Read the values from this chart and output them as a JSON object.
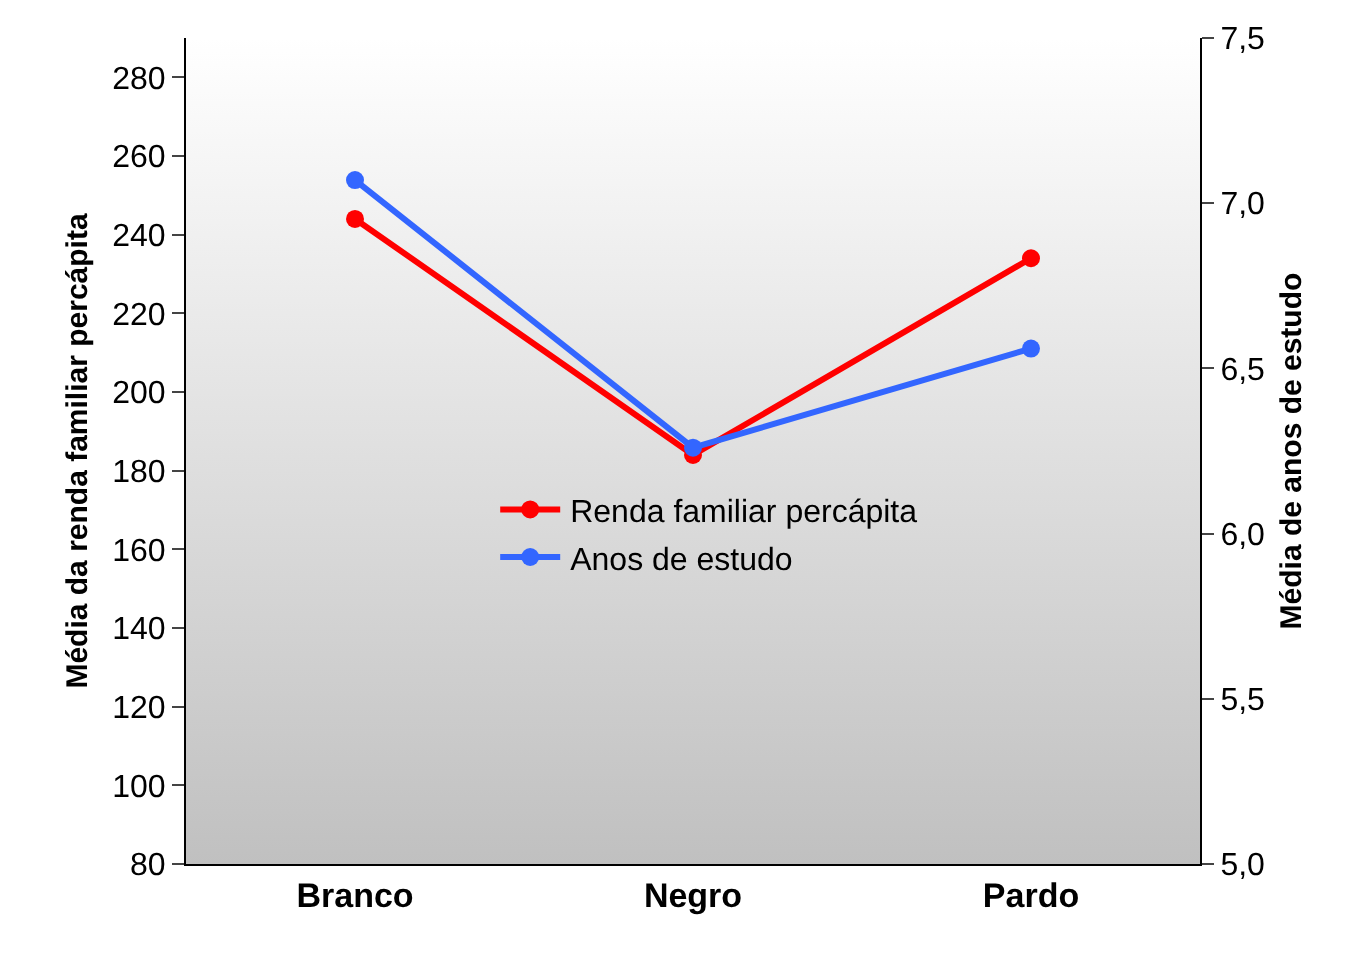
{
  "chart_data": {
    "type": "line",
    "ylabel": "Média da renda familiar percápita",
    "y2label": "Média de anos de estudo",
    "categories": [
      "Branco",
      "Negro",
      "Pardo"
    ],
    "series": [
      {
        "name": "Renda familiar percápita",
        "color": "#ff0000",
        "values": [
          244,
          184,
          234
        ]
      },
      {
        "name": "Anos de estudo",
        "color": "#3366ff",
        "values": [
          7.07,
          6.26,
          6.56
        ],
        "axis": "y2"
      }
    ],
    "ylim": [
      80,
      290
    ],
    "yticks": [
      80,
      100,
      120,
      140,
      160,
      180,
      200,
      220,
      240,
      260,
      280
    ],
    "y2lim": [
      5.0,
      7.5
    ],
    "y2ticks": [
      {
        "value": 5,
        "label": "5,0"
      },
      {
        "value": 5.5,
        "label": "5,5"
      },
      {
        "value": 6,
        "label": "6,0"
      },
      {
        "value": 6.5,
        "label": "6,5"
      },
      {
        "value": 7,
        "label": "7,0"
      },
      {
        "value": 7.5,
        "label": "7,5"
      }
    ],
    "grid": false,
    "legend": "center",
    "marker": "circle",
    "line_style": "solid"
  }
}
